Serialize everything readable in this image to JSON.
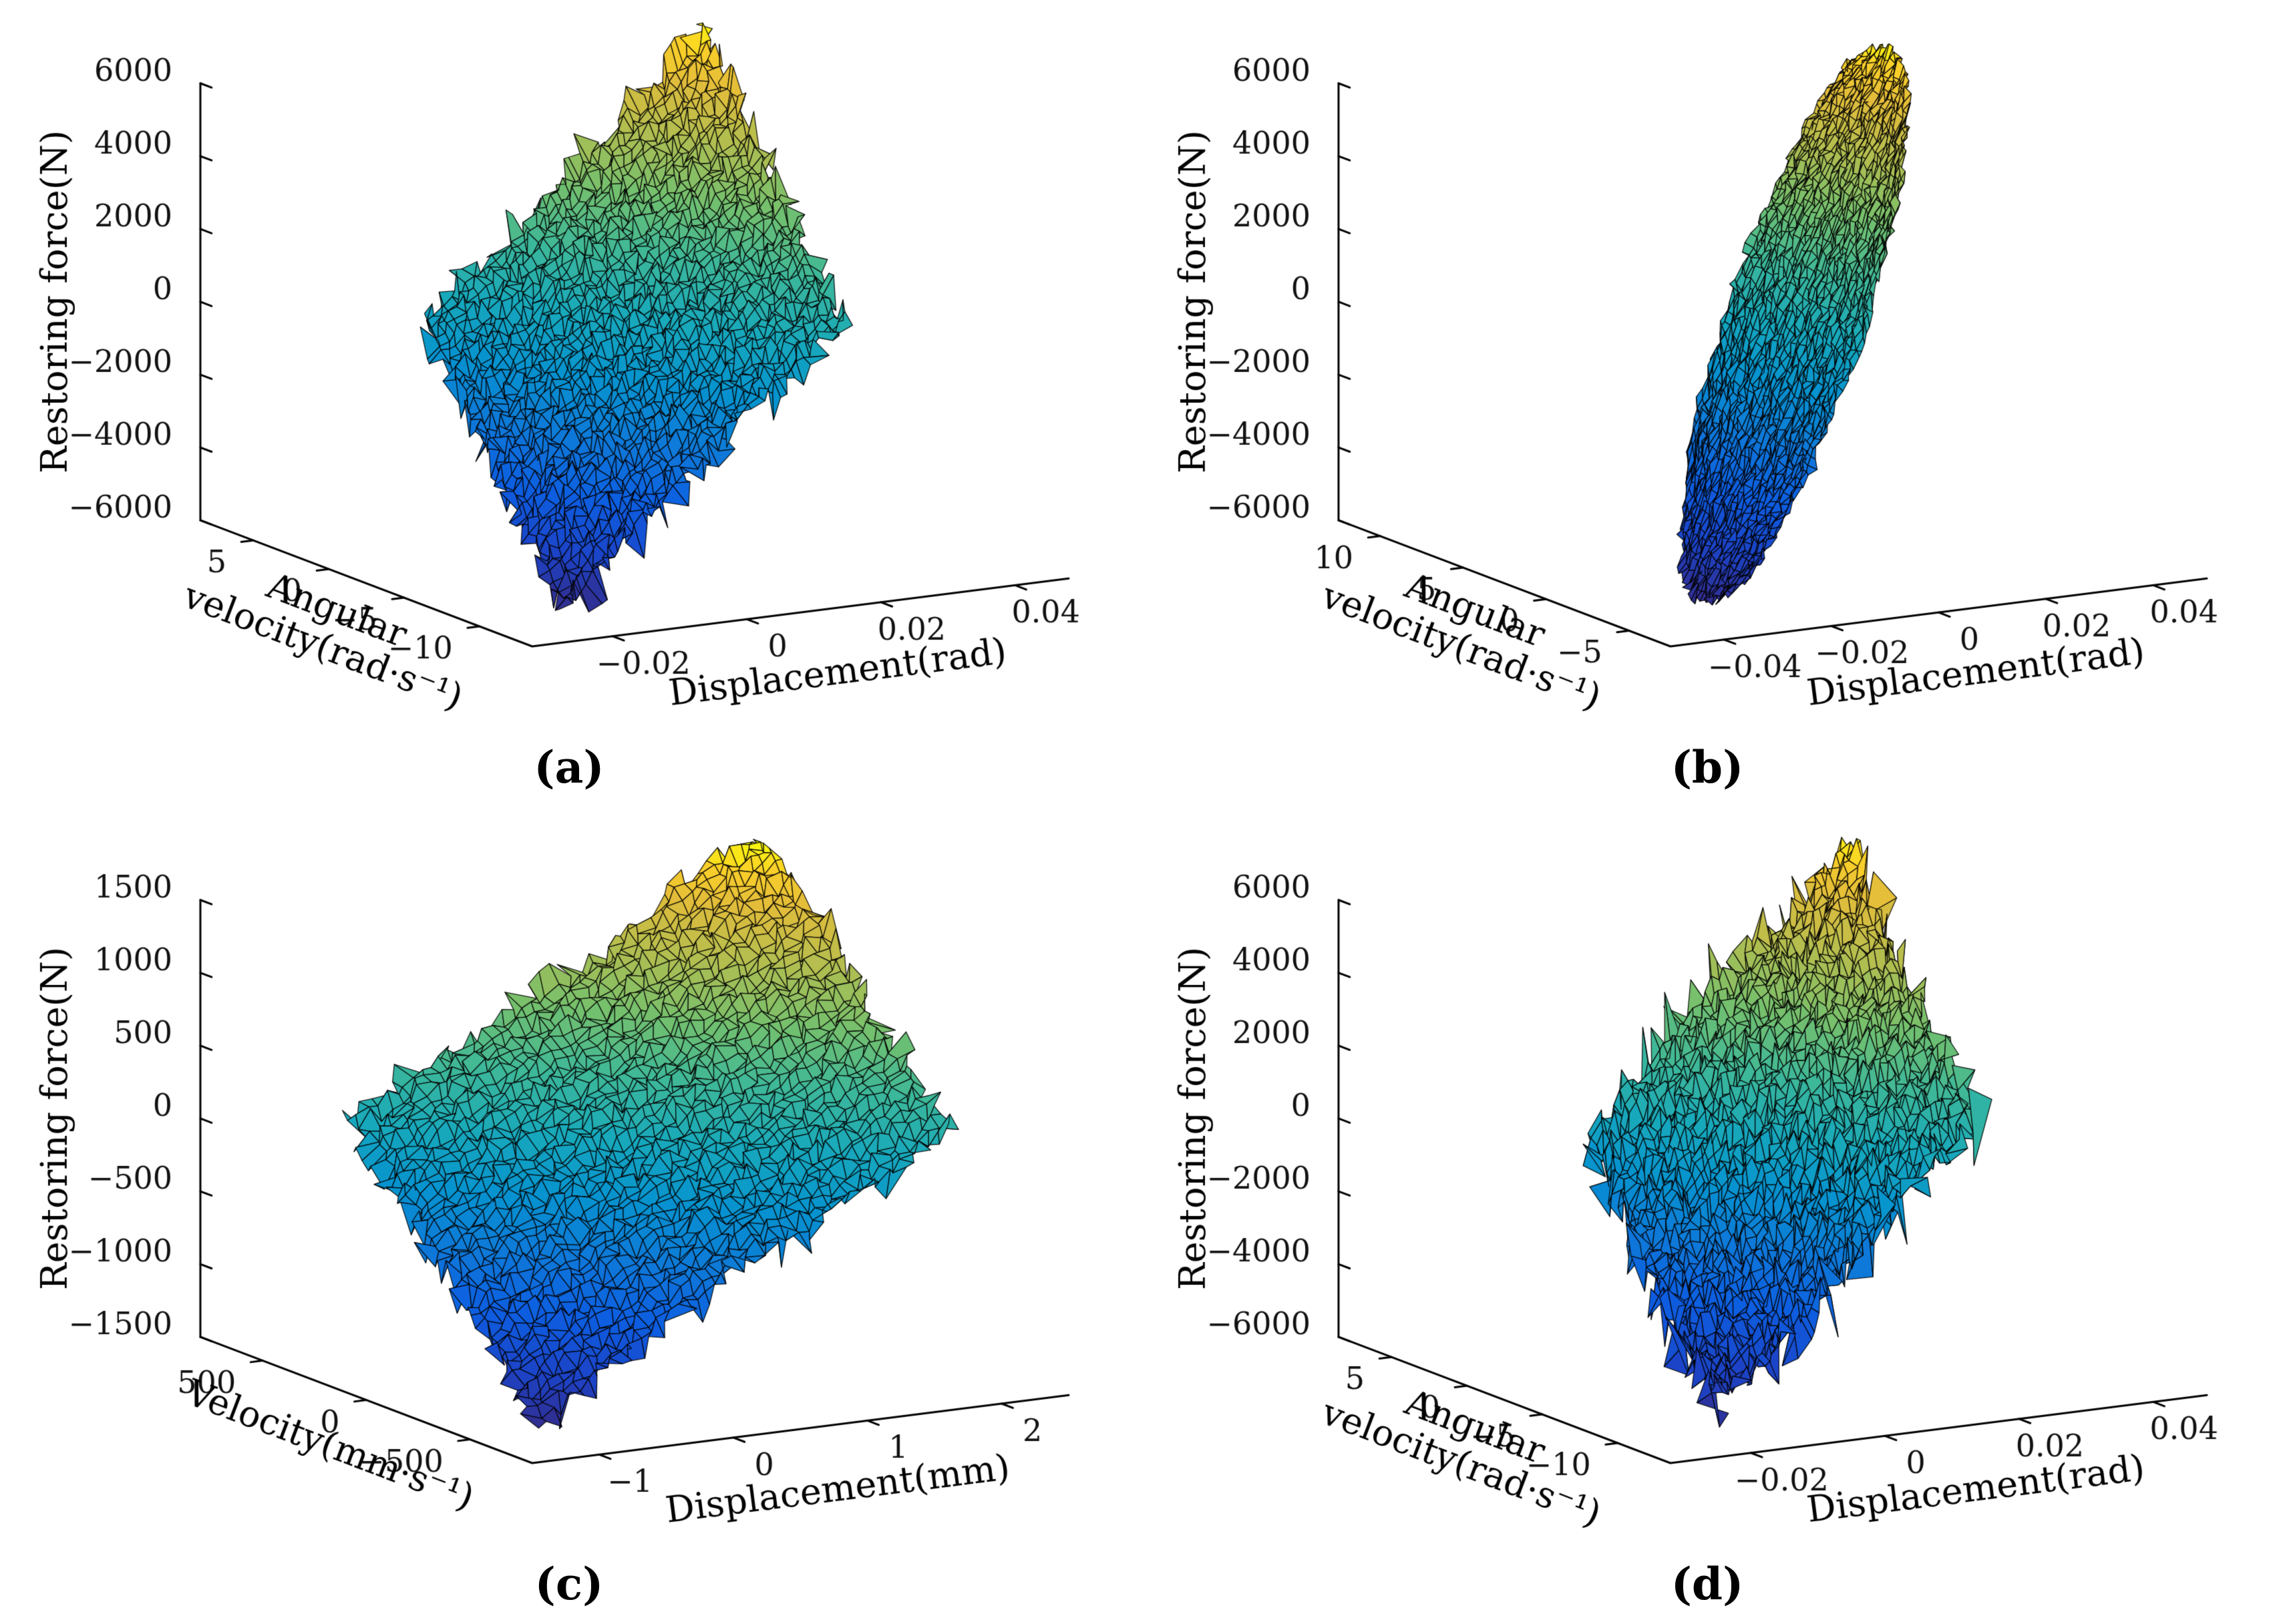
{
  "figure": {
    "background": "#ffffff",
    "panel_count": 4
  },
  "captions": {
    "a": "(a)",
    "b": "(b)",
    "c": "(c)",
    "d": "(d)"
  },
  "chart_data": [
    {
      "id": "a",
      "type": "surface",
      "zlabel": "Restoring force(N)",
      "xlabel": "Displacement(rad)",
      "ylabel_lines": [
        "Angular",
        "velocity(rad·s⁻¹)"
      ],
      "xlim": [
        -0.032,
        0.048
      ],
      "ylim": [
        -13.5,
        8.5
      ],
      "zlim": [
        -6000,
        6000
      ],
      "xticks": {
        "values": [
          -0.02,
          0,
          0.02,
          0.04
        ],
        "labels": [
          "−0.02",
          "0",
          "0.02",
          "0.04"
        ]
      },
      "yticks": {
        "values": [
          5,
          0,
          -5,
          -10
        ],
        "labels": [
          "5",
          "0",
          "−5",
          "−10"
        ]
      },
      "zticks": {
        "values": [
          -6000,
          -4000,
          -2000,
          0,
          2000,
          4000,
          6000
        ],
        "labels": [
          "−6000",
          "−4000",
          "−2000",
          "0",
          "2000",
          "4000",
          "6000"
        ]
      },
      "colormap": "parula",
      "surface_model": {
        "n": 46,
        "mask": "square",
        "seed": 11,
        "cx": 0.008,
        "xu": 0.0265,
        "xw": 0.0075,
        "cv": -2.5,
        "vu": 2.3,
        "vw": 8.2,
        "K": 96000,
        "C": 215,
        "wrinkle": 270,
        "noise": 190,
        "edge_jitter": 2.6
      }
    },
    {
      "id": "b",
      "type": "surface",
      "zlabel": "Restoring force(N)",
      "xlabel": "Displacement(rad)",
      "ylabel_lines": [
        "Angular",
        "velocity(rad·s⁻¹)"
      ],
      "xlim": [
        -0.05,
        0.05
      ],
      "ylim": [
        -7.5,
        12.5
      ],
      "zlim": [
        -6000,
        6000
      ],
      "xticks": {
        "values": [
          -0.04,
          -0.02,
          0,
          0.02,
          0.04
        ],
        "labels": [
          "−0.04",
          "−0.02",
          "0",
          "0.02",
          "0.04"
        ]
      },
      "yticks": {
        "values": [
          10,
          5,
          0,
          -5
        ],
        "labels": [
          "10",
          "5",
          "0",
          "−5"
        ]
      },
      "zticks": {
        "values": [
          -6000,
          -4000,
          -2000,
          0,
          2000,
          4000,
          6000
        ],
        "labels": [
          "−6000",
          "−4000",
          "−2000",
          "0",
          "2000",
          "4000",
          "6000"
        ]
      },
      "colormap": "parula",
      "surface_model": {
        "n": 46,
        "mask": "ellipse",
        "seed": 23,
        "cx": 0.001,
        "xu": 0.04,
        "xw": 0.008,
        "cv": 1.5,
        "vu": 6.5,
        "vw": 4.8,
        "K": 108000,
        "C": 160,
        "wrinkle": 150,
        "noise": 90,
        "edge_jitter": 1.2
      }
    },
    {
      "id": "c",
      "type": "surface",
      "zlabel": "Restoring force(N)",
      "xlabel": "Displacement(mm)",
      "ylabel_lines": [
        "Velocity(mm·s⁻¹)"
      ],
      "xlim": [
        -1.5,
        2.5
      ],
      "ylim": [
        -800,
        800
      ],
      "zlim": [
        -1500,
        1500
      ],
      "xticks": {
        "values": [
          -1,
          0,
          1,
          2
        ],
        "labels": [
          "−1",
          "0",
          "1",
          "2"
        ]
      },
      "yticks": {
        "values": [
          500,
          0,
          -500
        ],
        "labels": [
          "500",
          "0",
          "−500"
        ]
      },
      "zticks": {
        "values": [
          -1500,
          -1000,
          -500,
          0,
          500,
          1000,
          1500
        ],
        "labels": [
          "−1500",
          "−1000",
          "−500",
          "0",
          "500",
          "1000",
          "1500"
        ]
      },
      "colormap": "parula",
      "surface_model": {
        "n": 46,
        "mask": "square",
        "seed": 37,
        "cx": 0.55,
        "xu": 1.75,
        "xw": 0.28,
        "cv": -40,
        "vu": 130,
        "vw": 640,
        "K": 370,
        "C": 0.88,
        "wrinkle": 70,
        "noise": 42,
        "edge_jitter": 2.2
      }
    },
    {
      "id": "d",
      "type": "surface",
      "zlabel": "Restoring force(N)",
      "xlabel": "Displacement(rad)",
      "ylabel_lines": [
        "Angular",
        "velocity(rad·s⁻¹)"
      ],
      "xlim": [
        -0.032,
        0.048
      ],
      "ylim": [
        -13.5,
        8.5
      ],
      "zlim": [
        -6000,
        6000
      ],
      "xticks": {
        "values": [
          -0.02,
          0,
          0.02,
          0.04
        ],
        "labels": [
          "−0.02",
          "0",
          "0.02",
          "0.04"
        ]
      },
      "yticks": {
        "values": [
          5,
          0,
          -5,
          -10
        ],
        "labels": [
          "5",
          "0",
          "−5",
          "−10"
        ]
      },
      "zticks": {
        "values": [
          -6000,
          -4000,
          -2000,
          0,
          2000,
          4000,
          6000
        ],
        "labels": [
          "−6000",
          "−4000",
          "−2000",
          "0",
          "2000",
          "4000",
          "6000"
        ]
      },
      "colormap": "parula",
      "surface_model": {
        "n": 46,
        "mask": "square",
        "seed": 53,
        "cx": 0.01,
        "xu": 0.026,
        "xw": 0.0085,
        "cv": -2.2,
        "vu": 2.8,
        "vw": 8.0,
        "K": 93000,
        "C": 220,
        "wrinkle": 380,
        "noise": 300,
        "edge_jitter": 3.2
      }
    }
  ]
}
